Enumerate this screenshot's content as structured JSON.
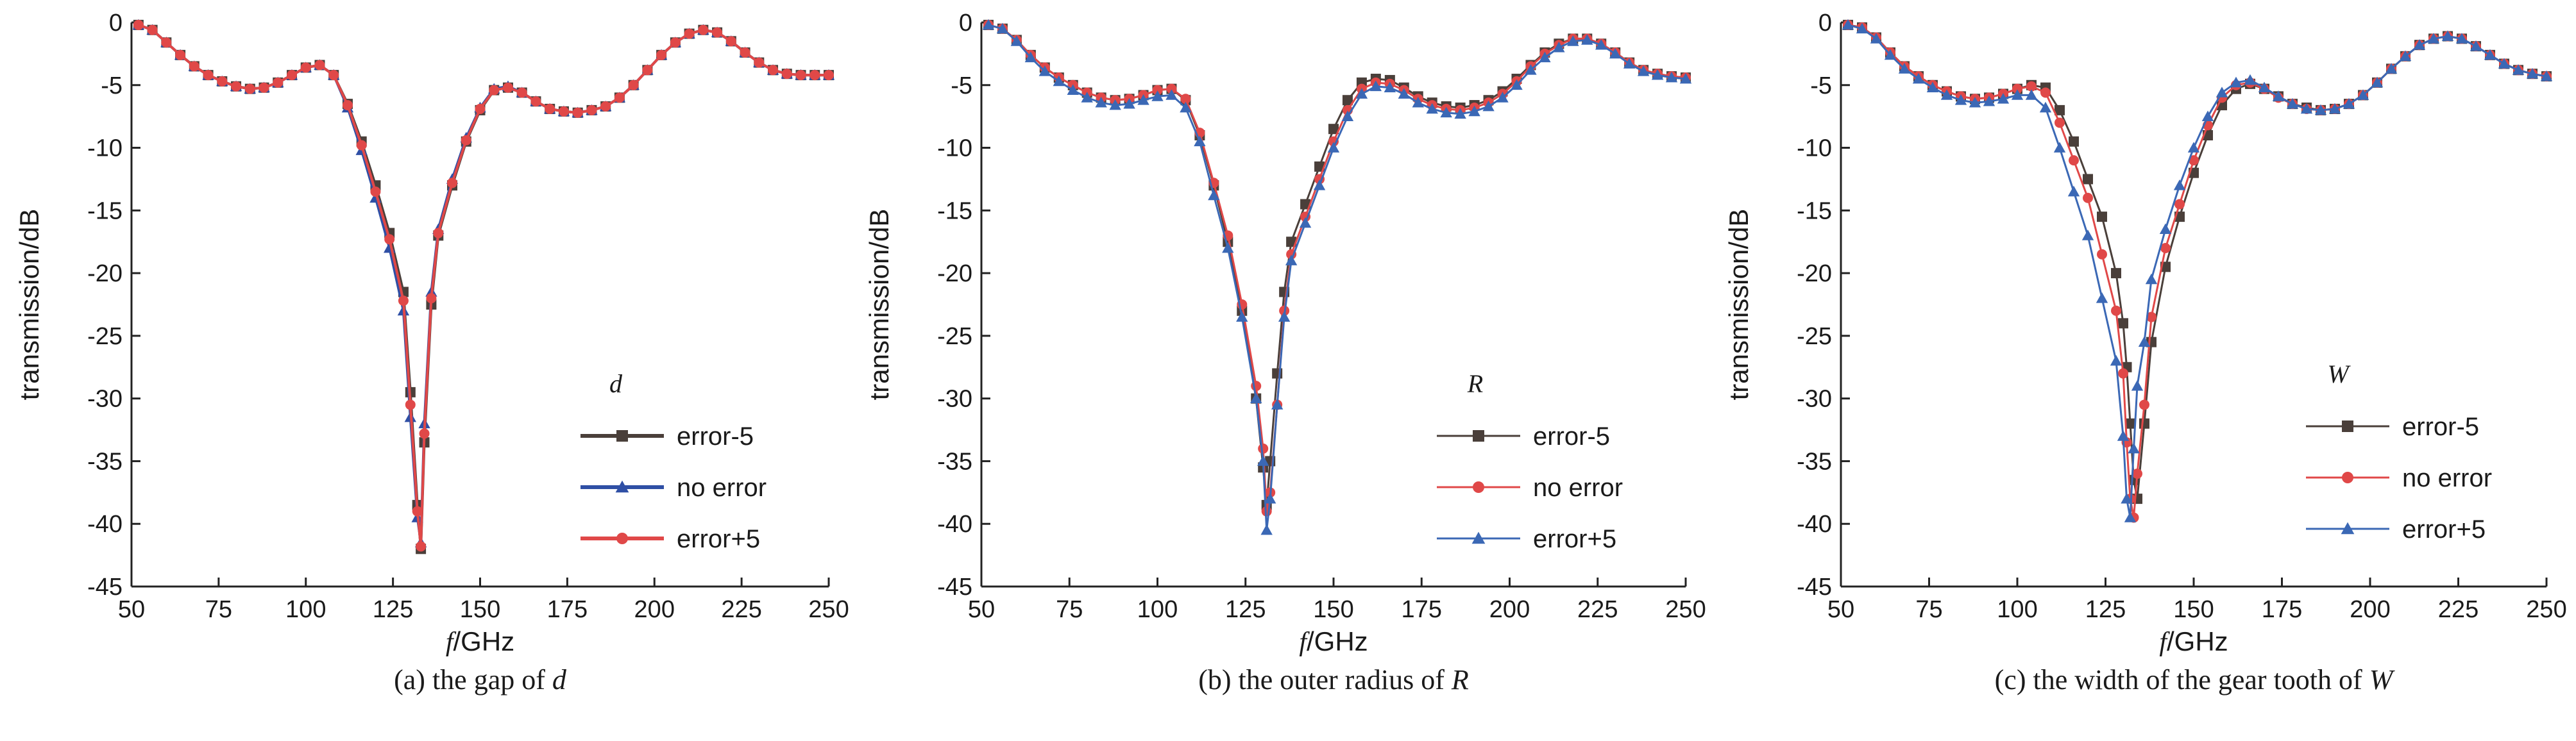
{
  "chart_data": [
    {
      "type": "line",
      "caption_prefix": "(a) the gap of ",
      "caption_var": "d",
      "xlabel_var": "f",
      "xlabel_unit": "/GHz",
      "ylabel": "transmission/dB",
      "legend_title": "d",
      "legend_placement": "lower-right",
      "xlim": [
        50,
        250
      ],
      "ylim": [
        -45,
        0
      ],
      "xticks": [
        50,
        75,
        100,
        125,
        150,
        175,
        200,
        225,
        250
      ],
      "yticks": [
        0,
        -5,
        -10,
        -15,
        -20,
        -25,
        -30,
        -35,
        -40,
        -45
      ],
      "grid": false,
      "x": [
        52,
        56,
        60,
        64,
        68,
        72,
        76,
        80,
        84,
        88,
        92,
        96,
        100,
        104,
        108,
        112,
        116,
        120,
        124,
        128,
        130,
        132,
        133,
        134,
        136,
        138,
        142,
        146,
        150,
        154,
        158,
        162,
        166,
        170,
        174,
        178,
        182,
        186,
        190,
        194,
        198,
        202,
        206,
        210,
        214,
        218,
        222,
        226,
        230,
        234,
        238,
        242,
        246,
        250
      ],
      "series": [
        {
          "name": "error-5",
          "marker": "square",
          "color": "#4a3f3a",
          "values": [
            -0.2,
            -0.6,
            -1.6,
            -2.6,
            -3.5,
            -4.2,
            -4.7,
            -5.1,
            -5.3,
            -5.2,
            -4.8,
            -4.2,
            -3.6,
            -3.4,
            -4.2,
            -6.5,
            -9.5,
            -13.0,
            -16.8,
            -21.5,
            -29.5,
            -38.5,
            -42.0,
            -33.5,
            -22.5,
            -17.0,
            -13.0,
            -9.5,
            -7.0,
            -5.4,
            -5.2,
            -5.6,
            -6.3,
            -6.9,
            -7.1,
            -7.2,
            -7.0,
            -6.7,
            -6.0,
            -5.0,
            -3.8,
            -2.6,
            -1.6,
            -0.9,
            -0.6,
            -0.8,
            -1.5,
            -2.4,
            -3.2,
            -3.8,
            -4.1,
            -4.2,
            -4.2,
            -4.2
          ]
        },
        {
          "name": "no error",
          "marker": "triangle",
          "color": "#2f4fa5",
          "values": [
            -0.2,
            -0.6,
            -1.6,
            -2.6,
            -3.5,
            -4.2,
            -4.7,
            -5.1,
            -5.3,
            -5.2,
            -4.8,
            -4.2,
            -3.6,
            -3.4,
            -4.2,
            -6.8,
            -10.2,
            -14.0,
            -18.0,
            -23.0,
            -31.5,
            -39.5,
            -41.5,
            -32.0,
            -21.5,
            -16.5,
            -12.5,
            -9.2,
            -6.8,
            -5.3,
            -5.1,
            -5.6,
            -6.3,
            -6.9,
            -7.1,
            -7.2,
            -7.0,
            -6.7,
            -6.0,
            -5.0,
            -3.8,
            -2.6,
            -1.6,
            -0.9,
            -0.6,
            -0.8,
            -1.5,
            -2.4,
            -3.2,
            -3.8,
            -4.1,
            -4.2,
            -4.2,
            -4.2
          ]
        },
        {
          "name": "error+5",
          "marker": "circle",
          "color": "#e04848",
          "values": [
            -0.2,
            -0.6,
            -1.6,
            -2.6,
            -3.5,
            -4.2,
            -4.7,
            -5.1,
            -5.3,
            -5.2,
            -4.8,
            -4.2,
            -3.6,
            -3.4,
            -4.2,
            -6.6,
            -9.8,
            -13.5,
            -17.3,
            -22.2,
            -30.5,
            -39.0,
            -41.8,
            -32.8,
            -22.0,
            -16.8,
            -12.8,
            -9.4,
            -6.9,
            -5.4,
            -5.2,
            -5.6,
            -6.3,
            -6.9,
            -7.1,
            -7.2,
            -7.0,
            -6.7,
            -6.0,
            -5.0,
            -3.8,
            -2.6,
            -1.6,
            -0.9,
            -0.6,
            -0.8,
            -1.5,
            -2.4,
            -3.2,
            -3.8,
            -4.1,
            -4.2,
            -4.2,
            -4.2
          ]
        }
      ]
    },
    {
      "type": "line",
      "caption_prefix": "(b) the outer radius of ",
      "caption_var": "R",
      "xlabel_var": "f",
      "xlabel_unit": "/GHz",
      "ylabel": "transmission/dB",
      "legend_title": "R",
      "legend_placement": "lower-right",
      "xlim": [
        50,
        250
      ],
      "ylim": [
        -45,
        0
      ],
      "xticks": [
        50,
        75,
        100,
        125,
        150,
        175,
        200,
        225,
        250
      ],
      "yticks": [
        0,
        -5,
        -10,
        -15,
        -20,
        -25,
        -30,
        -35,
        -40,
        -45
      ],
      "grid": false,
      "x": [
        52,
        56,
        60,
        64,
        68,
        72,
        76,
        80,
        84,
        88,
        92,
        96,
        100,
        104,
        108,
        112,
        116,
        120,
        124,
        128,
        130,
        131,
        132,
        134,
        136,
        138,
        142,
        146,
        150,
        154,
        158,
        162,
        166,
        170,
        174,
        178,
        182,
        186,
        190,
        194,
        198,
        202,
        206,
        210,
        214,
        218,
        222,
        226,
        230,
        234,
        238,
        242,
        246,
        250
      ],
      "series": [
        {
          "name": "error-5",
          "marker": "square",
          "color": "#4a3f3a",
          "values": [
            -0.2,
            -0.5,
            -1.4,
            -2.6,
            -3.6,
            -4.4,
            -5.0,
            -5.6,
            -6.0,
            -6.2,
            -6.1,
            -5.8,
            -5.4,
            -5.3,
            -6.2,
            -9.0,
            -13.0,
            -17.5,
            -23.0,
            -30.0,
            -35.5,
            -38.5,
            -35.0,
            -28.0,
            -21.5,
            -17.5,
            -14.5,
            -11.5,
            -8.5,
            -6.2,
            -4.8,
            -4.5,
            -4.6,
            -5.2,
            -5.9,
            -6.4,
            -6.7,
            -6.8,
            -6.6,
            -6.2,
            -5.5,
            -4.5,
            -3.4,
            -2.4,
            -1.7,
            -1.3,
            -1.3,
            -1.7,
            -2.4,
            -3.2,
            -3.8,
            -4.1,
            -4.3,
            -4.4
          ]
        },
        {
          "name": "no error",
          "marker": "circle",
          "color": "#e04848",
          "values": [
            -0.2,
            -0.5,
            -1.4,
            -2.6,
            -3.6,
            -4.4,
            -5.0,
            -5.6,
            -6.0,
            -6.2,
            -6.1,
            -5.8,
            -5.4,
            -5.3,
            -6.1,
            -8.8,
            -12.8,
            -17.0,
            -22.5,
            -29.0,
            -34.0,
            -39.0,
            -37.5,
            -30.5,
            -23.0,
            -18.5,
            -15.5,
            -12.5,
            -9.5,
            -7.0,
            -5.3,
            -4.8,
            -4.9,
            -5.4,
            -6.1,
            -6.6,
            -6.9,
            -7.0,
            -6.8,
            -6.4,
            -5.7,
            -4.7,
            -3.5,
            -2.5,
            -1.8,
            -1.3,
            -1.3,
            -1.7,
            -2.4,
            -3.2,
            -3.8,
            -4.1,
            -4.3,
            -4.4
          ]
        },
        {
          "name": "error+5",
          "marker": "triangle",
          "color": "#3b68b5",
          "values": [
            -0.2,
            -0.5,
            -1.5,
            -2.8,
            -3.9,
            -4.7,
            -5.4,
            -6.0,
            -6.4,
            -6.6,
            -6.5,
            -6.2,
            -5.9,
            -5.8,
            -6.8,
            -9.5,
            -13.8,
            -18.0,
            -23.5,
            -30.0,
            -35.0,
            -40.5,
            -38.0,
            -30.5,
            -23.5,
            -19.0,
            -16.0,
            -13.0,
            -10.0,
            -7.5,
            -5.7,
            -5.1,
            -5.2,
            -5.7,
            -6.4,
            -6.9,
            -7.2,
            -7.3,
            -7.1,
            -6.7,
            -6.0,
            -5.0,
            -3.8,
            -2.8,
            -2.0,
            -1.5,
            -1.4,
            -1.8,
            -2.5,
            -3.3,
            -3.9,
            -4.2,
            -4.4,
            -4.5
          ]
        }
      ]
    },
    {
      "type": "line",
      "caption_prefix": "(c) the width of the gear tooth of ",
      "caption_var": "W",
      "xlabel_var": "f",
      "xlabel_unit": "/GHz",
      "ylabel": "transmission/dB",
      "legend_title": "W",
      "legend_placement": "lower-right",
      "xlim": [
        50,
        250
      ],
      "ylim": [
        -45,
        0
      ],
      "xticks": [
        50,
        75,
        100,
        125,
        150,
        175,
        200,
        225,
        250
      ],
      "yticks": [
        0,
        -5,
        -10,
        -15,
        -20,
        -25,
        -30,
        -35,
        -40,
        -45
      ],
      "grid": false,
      "x": [
        52,
        56,
        60,
        64,
        68,
        72,
        76,
        80,
        84,
        88,
        92,
        96,
        100,
        104,
        108,
        112,
        116,
        120,
        124,
        128,
        130,
        131,
        132,
        133,
        134,
        136,
        138,
        142,
        146,
        150,
        154,
        158,
        162,
        166,
        170,
        174,
        178,
        182,
        186,
        190,
        194,
        198,
        202,
        206,
        210,
        214,
        218,
        222,
        226,
        230,
        234,
        238,
        242,
        246,
        250
      ],
      "series": [
        {
          "name": "error-5",
          "marker": "square",
          "color": "#4a3f3a",
          "values": [
            -0.2,
            -0.4,
            -1.2,
            -2.4,
            -3.5,
            -4.3,
            -5.0,
            -5.5,
            -5.9,
            -6.1,
            -6.0,
            -5.7,
            -5.3,
            -5.0,
            -5.2,
            -7.0,
            -9.5,
            -12.5,
            -15.5,
            -20.0,
            -24.0,
            -27.5,
            -32.0,
            -36.5,
            -38.0,
            -32.0,
            -25.5,
            -19.5,
            -15.5,
            -12.0,
            -9.0,
            -6.6,
            -5.3,
            -4.9,
            -5.3,
            -5.9,
            -6.5,
            -6.8,
            -7.0,
            -6.9,
            -6.5,
            -5.8,
            -4.8,
            -3.7,
            -2.7,
            -1.8,
            -1.3,
            -1.1,
            -1.3,
            -1.9,
            -2.6,
            -3.3,
            -3.8,
            -4.1,
            -4.3
          ]
        },
        {
          "name": "no error",
          "marker": "circle",
          "color": "#e04848",
          "values": [
            -0.2,
            -0.4,
            -1.2,
            -2.4,
            -3.5,
            -4.3,
            -5.0,
            -5.5,
            -5.9,
            -6.1,
            -6.0,
            -5.7,
            -5.3,
            -5.1,
            -5.6,
            -8.0,
            -11.0,
            -14.0,
            -18.5,
            -23.0,
            -28.0,
            -33.5,
            -38.0,
            -39.5,
            -36.0,
            -30.5,
            -23.5,
            -18.0,
            -14.5,
            -11.0,
            -8.2,
            -6.0,
            -5.0,
            -4.8,
            -5.3,
            -6.0,
            -6.5,
            -6.9,
            -7.0,
            -6.9,
            -6.5,
            -5.8,
            -4.8,
            -3.7,
            -2.7,
            -1.8,
            -1.3,
            -1.1,
            -1.3,
            -1.9,
            -2.6,
            -3.3,
            -3.8,
            -4.1,
            -4.3
          ]
        },
        {
          "name": "error+5",
          "marker": "triangle",
          "color": "#3b68b5",
          "values": [
            -0.2,
            -0.5,
            -1.3,
            -2.6,
            -3.7,
            -4.5,
            -5.2,
            -5.8,
            -6.2,
            -6.4,
            -6.3,
            -6.1,
            -5.8,
            -5.8,
            -6.8,
            -10.0,
            -13.5,
            -17.0,
            -22.0,
            -27.0,
            -33.0,
            -38.0,
            -39.5,
            -34.0,
            -29.0,
            -25.5,
            -20.5,
            -16.5,
            -13.0,
            -10.0,
            -7.5,
            -5.6,
            -4.8,
            -4.6,
            -5.2,
            -5.9,
            -6.5,
            -6.9,
            -7.0,
            -6.9,
            -6.5,
            -5.8,
            -4.8,
            -3.7,
            -2.7,
            -1.8,
            -1.3,
            -1.1,
            -1.3,
            -1.9,
            -2.6,
            -3.3,
            -3.8,
            -4.1,
            -4.3
          ]
        }
      ]
    }
  ]
}
